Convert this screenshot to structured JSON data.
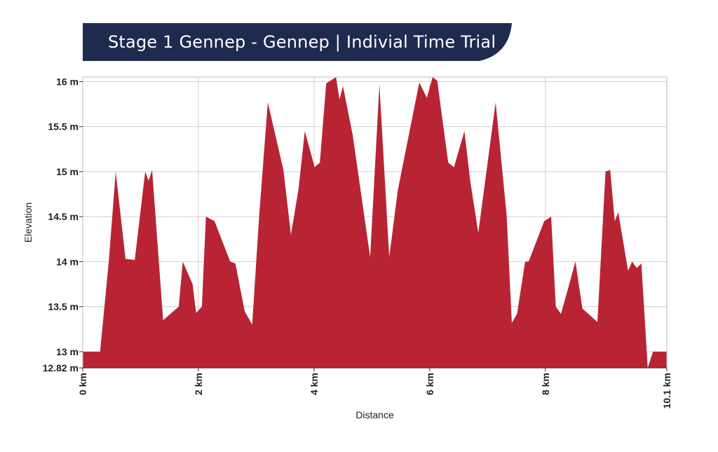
{
  "title_banner": {
    "text": "Stage 1 Gennep - Gennep | Indivial Time Trial",
    "background_color": "#1f2a4f",
    "text_color": "#ffffff"
  },
  "chart_data": {
    "type": "area",
    "xlabel": "Distance",
    "ylabel": "Elevation",
    "xlim": [
      0,
      10.1
    ],
    "ylim": [
      12.82,
      16.05
    ],
    "grid": true,
    "fill_color": "#b82434",
    "x_ticks": [
      {
        "value": 0,
        "label": "0 km"
      },
      {
        "value": 2,
        "label": "2 km"
      },
      {
        "value": 4,
        "label": "4 km"
      },
      {
        "value": 6,
        "label": "6 km"
      },
      {
        "value": 8,
        "label": "8 km"
      },
      {
        "value": 10.1,
        "label": "10.1 km"
      }
    ],
    "y_ticks": [
      {
        "value": 12.82,
        "label": "12.82 m"
      },
      {
        "value": 13,
        "label": "13 m"
      },
      {
        "value": 13.5,
        "label": "13.5 m"
      },
      {
        "value": 14,
        "label": "14 m"
      },
      {
        "value": 14.5,
        "label": "14.5 m"
      },
      {
        "value": 15,
        "label": "15 m"
      },
      {
        "value": 15.5,
        "label": "15.5 m"
      },
      {
        "value": 16,
        "label": "16 m"
      }
    ],
    "series": [
      {
        "x": [
          0,
          0.3,
          0.45,
          0.57,
          0.74,
          0.9,
          1.08,
          1.14,
          1.2,
          1.39,
          1.66,
          1.73,
          1.9,
          1.96,
          2.06,
          2.13,
          2.28,
          2.55,
          2.64,
          2.8,
          2.93,
          3.05,
          3.2,
          3.47,
          3.6,
          3.73,
          3.84,
          4.01,
          4.1,
          4.21,
          4.38,
          4.44,
          4.5,
          4.67,
          4.97,
          5.13,
          5.3,
          5.45,
          5.82,
          5.95,
          6.05,
          6.13,
          6.32,
          6.42,
          6.6,
          6.7,
          6.84,
          7.14,
          7.33,
          7.42,
          7.51,
          7.65,
          7.71,
          7.98,
          8.1,
          8.18,
          8.27,
          8.4,
          8.52,
          8.64,
          8.9,
          9.04,
          9.12,
          9.2,
          9.26,
          9.43,
          9.5,
          9.58,
          9.66,
          9.77,
          9.86,
          9.91,
          10.1
        ],
        "y": [
          13.0,
          13.0,
          14.0,
          15.0,
          14.03,
          14.02,
          15.0,
          14.9,
          15.02,
          13.35,
          13.5,
          14.0,
          13.75,
          13.43,
          13.5,
          14.5,
          14.45,
          14.0,
          13.98,
          13.45,
          13.3,
          14.5,
          15.77,
          15.02,
          14.3,
          14.8,
          15.45,
          15.05,
          15.1,
          15.98,
          16.05,
          15.8,
          15.95,
          15.4,
          14.05,
          15.97,
          14.05,
          14.8,
          15.99,
          15.82,
          16.05,
          16.01,
          15.1,
          15.05,
          15.45,
          14.9,
          14.32,
          15.77,
          14.52,
          13.32,
          13.42,
          14.0,
          14.0,
          14.45,
          14.5,
          13.5,
          13.42,
          13.72,
          14.0,
          13.48,
          13.33,
          15.0,
          15.02,
          14.45,
          14.55,
          13.9,
          14.0,
          13.93,
          13.98,
          12.82,
          13.0,
          13.0,
          13.0
        ]
      }
    ]
  }
}
